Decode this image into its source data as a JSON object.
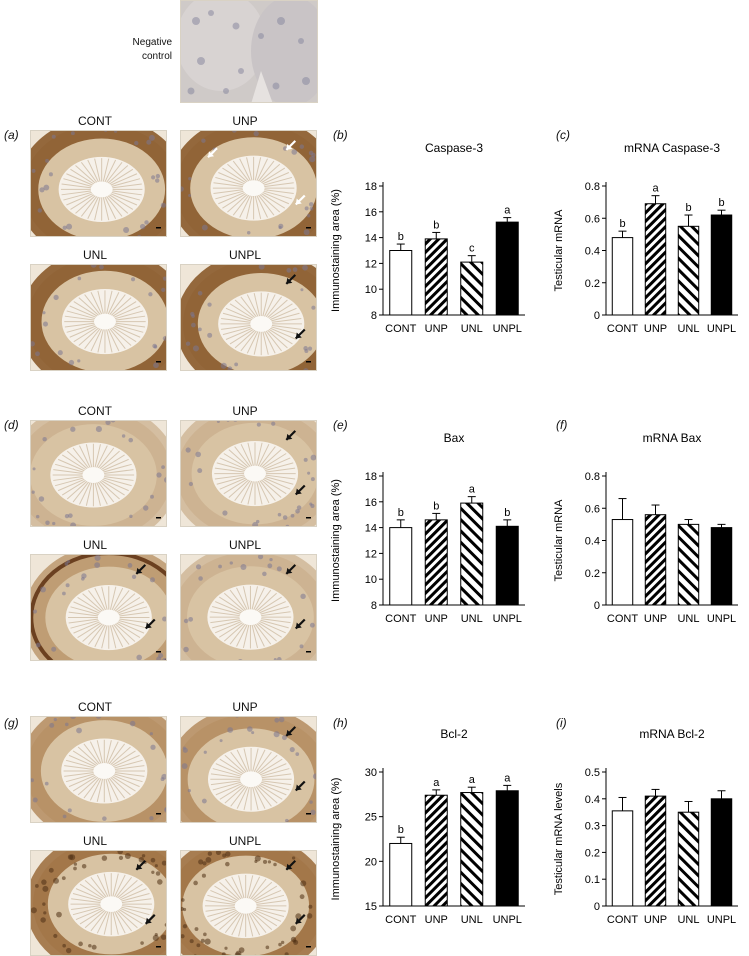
{
  "negative_control": {
    "label_line1": "Negative",
    "label_line2": "control"
  },
  "rows": [
    {
      "micro_panel_label": "(a)",
      "micro_captions": [
        "CONT",
        "UNP",
        "UNL",
        "UNPL"
      ],
      "ihc_panel_label": "(b)",
      "mrna_panel_label": "(c)"
    },
    {
      "micro_panel_label": "(d)",
      "micro_captions": [
        "CONT",
        "UNP",
        "UNL",
        "UNPL"
      ],
      "ihc_panel_label": "(e)",
      "mrna_panel_label": "(f)"
    },
    {
      "micro_panel_label": "(g)",
      "micro_captions": [
        "CONT",
        "UNP",
        "UNL",
        "UNPL"
      ],
      "ihc_panel_label": "(h)",
      "mrna_panel_label": "(i)"
    }
  ],
  "colors": {
    "stain_brown": "#8a5a2b",
    "stain_light": "#d8c3a3",
    "tissue_bg": "#efe6d8",
    "bar_edge": "#000000",
    "arrow": "#111111"
  },
  "chart_data": [
    {
      "type": "bar",
      "title": "Caspase-3",
      "ylabel": "Immunostaining area (%)",
      "categories": [
        "CONT",
        "UNP",
        "UNL",
        "UNPL"
      ],
      "values": [
        13.0,
        13.9,
        12.1,
        15.2
      ],
      "errors": [
        0.5,
        0.5,
        0.5,
        0.35
      ],
      "sig_letters": [
        "b",
        "b",
        "c",
        "a"
      ],
      "fills": [
        "white",
        "hatch",
        "hatch-wide",
        "black"
      ],
      "ylim": [
        8,
        18
      ],
      "yticks": [
        8,
        10,
        12,
        14,
        16,
        18
      ]
    },
    {
      "type": "bar",
      "title": "mRNA Caspase-3",
      "ylabel": "Testicular mRNA",
      "categories": [
        "CONT",
        "UNP",
        "UNL",
        "UNPL"
      ],
      "values": [
        0.48,
        0.69,
        0.55,
        0.62
      ],
      "errors": [
        0.04,
        0.05,
        0.07,
        0.03
      ],
      "sig_letters": [
        "b",
        "a",
        "b",
        "b"
      ],
      "fills": [
        "white",
        "hatch",
        "hatch-wide",
        "black"
      ],
      "ylim": [
        0,
        0.8
      ],
      "yticks": [
        0,
        0.2,
        0.4,
        0.6,
        0.8
      ]
    },
    {
      "type": "bar",
      "title": "Bax",
      "ylabel": "Immunostaining area (%)",
      "categories": [
        "CONT",
        "UNP",
        "UNL",
        "UNPL"
      ],
      "values": [
        14.0,
        14.6,
        15.9,
        14.1
      ],
      "errors": [
        0.6,
        0.5,
        0.5,
        0.5
      ],
      "sig_letters": [
        "b",
        "b",
        "a",
        "b"
      ],
      "fills": [
        "white",
        "hatch",
        "hatch-wide",
        "black"
      ],
      "ylim": [
        8,
        18
      ],
      "yticks": [
        8,
        10,
        12,
        14,
        16,
        18
      ]
    },
    {
      "type": "bar",
      "title": "mRNA Bax",
      "ylabel": "Testicular mRNA",
      "categories": [
        "CONT",
        "UNP",
        "UNL",
        "UNPL"
      ],
      "values": [
        0.53,
        0.56,
        0.5,
        0.48
      ],
      "errors": [
        0.13,
        0.06,
        0.03,
        0.02
      ],
      "sig_letters": [
        "",
        "",
        "",
        ""
      ],
      "fills": [
        "white",
        "hatch",
        "hatch-wide",
        "black"
      ],
      "ylim": [
        0,
        0.8
      ],
      "yticks": [
        0,
        0.2,
        0.4,
        0.6,
        0.8
      ]
    },
    {
      "type": "bar",
      "title": "Bcl-2",
      "ylabel": "Immunostaining area (%)",
      "categories": [
        "CONT",
        "UNP",
        "UNL",
        "UNPL"
      ],
      "values": [
        22.0,
        27.4,
        27.7,
        27.9
      ],
      "errors": [
        0.7,
        0.6,
        0.6,
        0.6
      ],
      "sig_letters": [
        "b",
        "a",
        "a",
        "a"
      ],
      "fills": [
        "white",
        "hatch",
        "hatch-wide",
        "black"
      ],
      "ylim": [
        15,
        30
      ],
      "yticks": [
        15,
        20,
        25,
        30
      ]
    },
    {
      "type": "bar",
      "title": "mRNA Bcl-2",
      "ylabel": "Testicular mRNA levels",
      "categories": [
        "CONT",
        "UNP",
        "UNL",
        "UNPL"
      ],
      "values": [
        0.355,
        0.41,
        0.35,
        0.4
      ],
      "errors": [
        0.05,
        0.025,
        0.04,
        0.03
      ],
      "sig_letters": [
        "",
        "",
        "",
        ""
      ],
      "fills": [
        "white",
        "hatch",
        "hatch-wide",
        "black"
      ],
      "ylim": [
        0,
        0.5
      ],
      "yticks": [
        0,
        0.1,
        0.2,
        0.3,
        0.4,
        0.5
      ]
    }
  ]
}
